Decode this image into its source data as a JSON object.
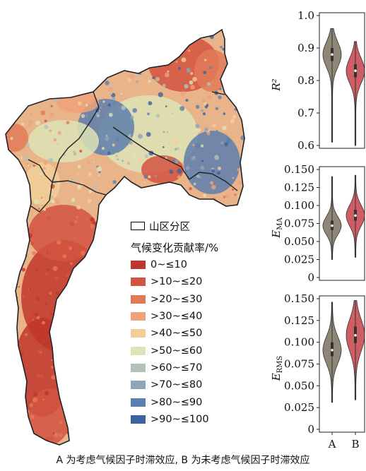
{
  "legend": {
    "region_label": "山区分区",
    "title": "气候变化贡献率/%",
    "items": [
      {
        "label": "0~≤10",
        "color": "#c0362c"
      },
      {
        "label": ">10~≤20",
        "color": "#d35342"
      },
      {
        "label": ">20~≤30",
        "color": "#e27a58"
      },
      {
        "label": ">30~≤40",
        "color": "#eea27a"
      },
      {
        "label": ">40~≤50",
        "color": "#f2cf98"
      },
      {
        "label": ">50~≤60",
        "color": "#dde3b6"
      },
      {
        "label": ">60~≤70",
        "color": "#b3c2b8"
      },
      {
        "label": ">70~≤80",
        "color": "#8ea5b8"
      },
      {
        "label": ">80~≤90",
        "color": "#5d7fae"
      },
      {
        "label": ">90~≤100",
        "color": "#3c629f"
      }
    ]
  },
  "chart_data": [
    {
      "type": "violin",
      "ylabel": "R²",
      "ylim": [
        0.6,
        1.0
      ],
      "yticks": [
        "0.6",
        "0.7",
        "0.8",
        "0.9",
        "1.0"
      ],
      "categories": [
        "A",
        "B"
      ],
      "series": [
        {
          "name": "A",
          "color": "#8e8776",
          "median": 0.88,
          "q1": 0.86,
          "q3": 0.9,
          "min": 0.61,
          "max": 0.96
        },
        {
          "name": "B",
          "color": "#cf5d64",
          "median": 0.83,
          "q1": 0.81,
          "q3": 0.85,
          "min": 0.6,
          "max": 0.92
        }
      ]
    },
    {
      "type": "violin",
      "ylabel": "EMA",
      "ylim": [
        0,
        0.15
      ],
      "yticks": [
        "0",
        "0.025",
        "0.050",
        "0.075",
        "0.100",
        "0.125",
        "0.150"
      ],
      "categories": [
        "A",
        "B"
      ],
      "series": [
        {
          "name": "A",
          "color": "#8e8776",
          "median": 0.072,
          "q1": 0.066,
          "q3": 0.079,
          "min": 0.025,
          "max": 0.14
        },
        {
          "name": "B",
          "color": "#cf5d64",
          "median": 0.086,
          "q1": 0.079,
          "q3": 0.094,
          "min": 0.028,
          "max": 0.142
        }
      ]
    },
    {
      "type": "violin",
      "ylabel": "ERMS",
      "ylim": [
        0,
        0.15
      ],
      "yticks": [
        "0",
        "0.025",
        "0.050",
        "0.075",
        "0.100",
        "0.125",
        "0.150"
      ],
      "xticks": [
        "A",
        "B"
      ],
      "categories": [
        "A",
        "B"
      ],
      "series": [
        {
          "name": "A",
          "color": "#8e8776",
          "median": 0.091,
          "q1": 0.084,
          "q3": 0.1,
          "min": 0.031,
          "max": 0.146
        },
        {
          "name": "B",
          "color": "#cf5d64",
          "median": 0.108,
          "q1": 0.099,
          "q3": 0.118,
          "min": 0.034,
          "max": 0.148
        }
      ]
    }
  ],
  "caption": "A 为考虑气候因子时滞效应, B 为未考虑气候因子时滞效应"
}
